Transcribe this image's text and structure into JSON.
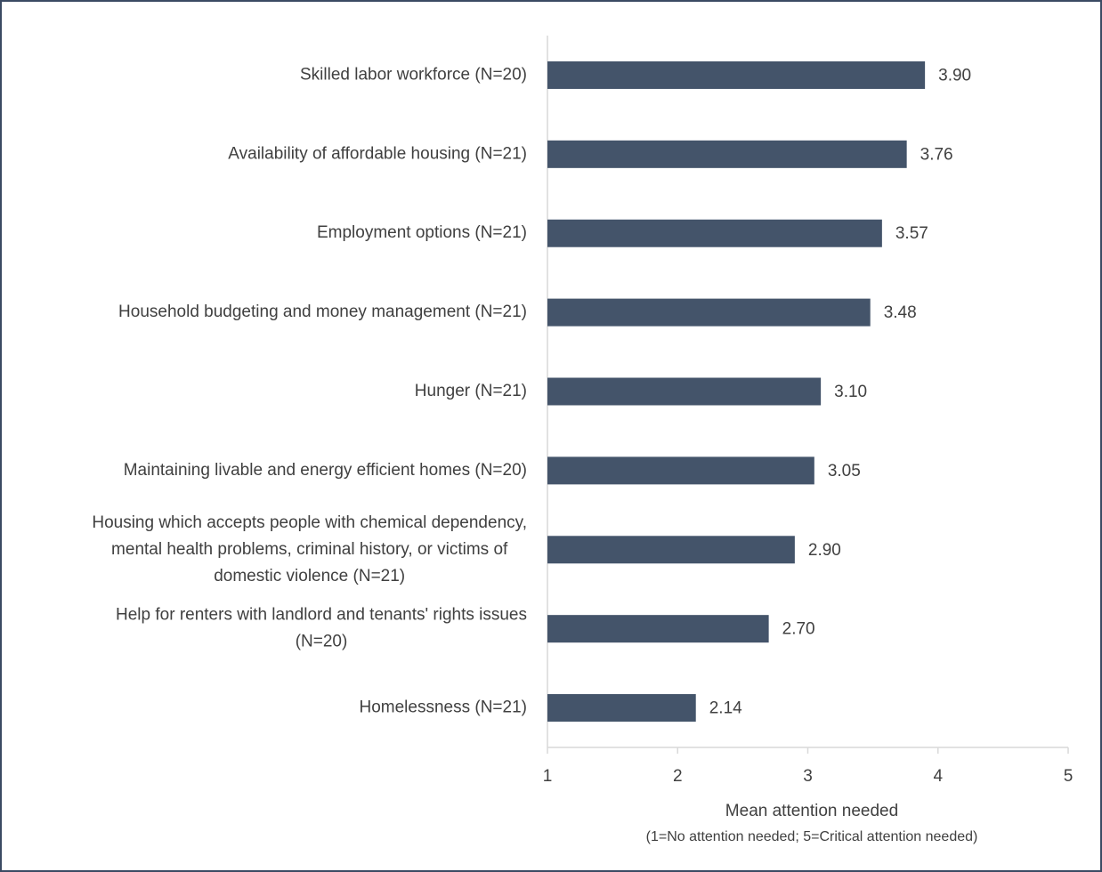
{
  "chart_data": {
    "type": "hbar",
    "categories": [
      "Skilled labor workforce (N=20)",
      "Availability of affordable housing (N=21)",
      "Employment options (N=21)",
      "Household budgeting and money management (N=21)",
      "Hunger (N=21)",
      "Maintaining livable and energy efficient homes (N=20)",
      "Housing which accepts people with chemical dependency,\nmental health problems, criminal history, or victims of\ndomestic violence (N=21)",
      "Help for renters with landlord and tenants' rights issues\n(N=20)",
      "Homelessness (N=21)"
    ],
    "values": [
      3.9,
      3.76,
      3.57,
      3.48,
      3.1,
      3.05,
      2.9,
      2.7,
      2.14
    ],
    "value_labels": [
      "3.90",
      "3.76",
      "3.57",
      "3.48",
      "3.10",
      "3.05",
      "2.90",
      "2.70",
      "2.14"
    ],
    "color": "#44546a",
    "xlim": [
      1,
      5
    ],
    "xticks": [
      1,
      2,
      3,
      4,
      5
    ],
    "x_label": "Mean attention needed",
    "x_label_note": "(1=No attention needed; 5=Critical attention needed)"
  }
}
